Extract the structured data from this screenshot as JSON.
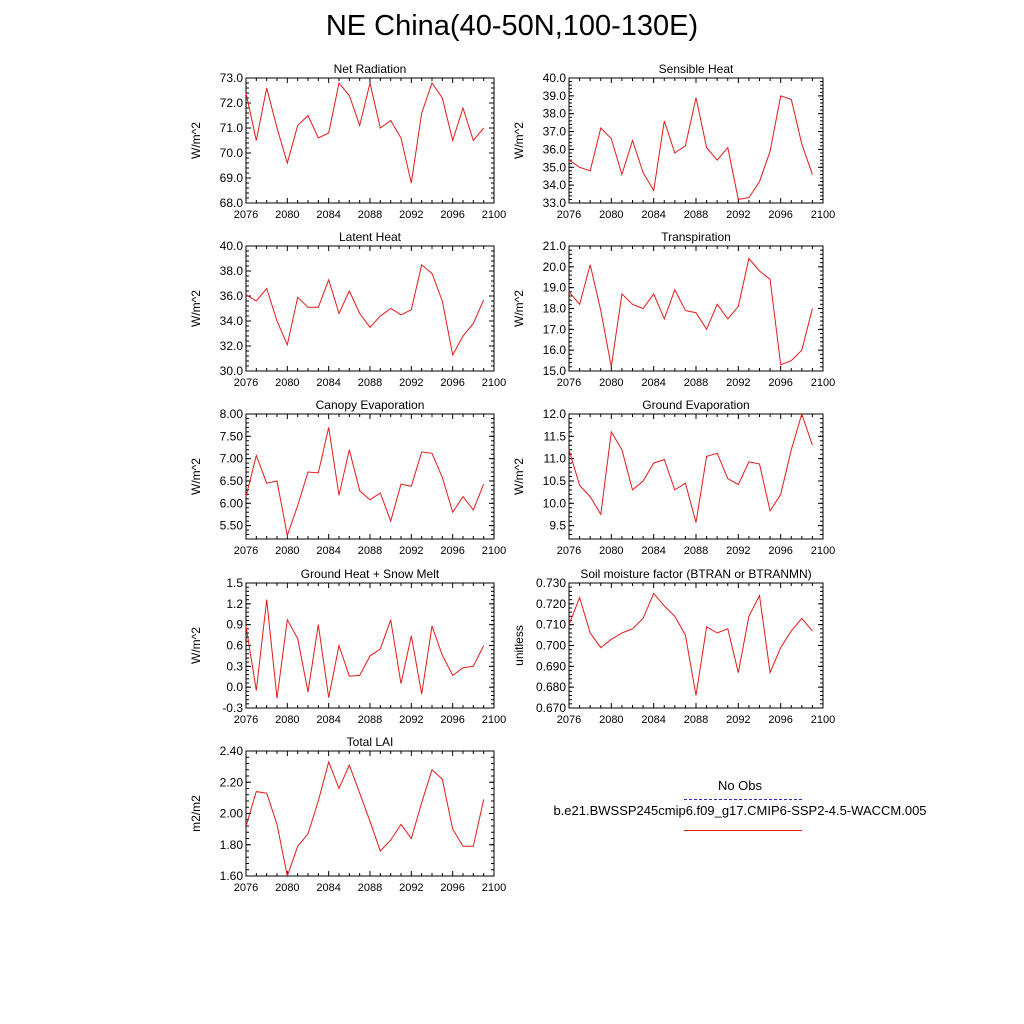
{
  "title": "NE China(40-50N,100-130E)",
  "legend": {
    "obs_label": "No Obs",
    "model_label": "b.e21.BWSSP245cmip6.f09_g17.CMIP6-SSP2-4.5-WACCM.005",
    "obs_color": "#2b2bb0",
    "model_color": "#e41a1c"
  },
  "x_ticks": [
    "2076",
    "2080",
    "2084",
    "2088",
    "2092",
    "2096",
    "2100"
  ],
  "chart_data": [
    {
      "type": "line",
      "title": "Net Radiation",
      "ylabel": "W/m^2",
      "xlim": [
        2076,
        2100
      ],
      "ylim": [
        68.0,
        73.0
      ],
      "yticks": [
        "68.0",
        "69.0",
        "70.0",
        "71.0",
        "72.0",
        "73.0"
      ],
      "x": [
        2076,
        2077,
        2078,
        2079,
        2080,
        2081,
        2082,
        2083,
        2084,
        2085,
        2086,
        2087,
        2088,
        2089,
        2090,
        2091,
        2092,
        2093,
        2094,
        2095,
        2096,
        2097,
        2098,
        2099
      ],
      "series": [
        {
          "values": [
            72.4,
            70.5,
            72.6,
            71.0,
            69.6,
            71.1,
            71.5,
            70.6,
            70.8,
            72.8,
            72.3,
            71.1,
            72.8,
            71.0,
            71.3,
            70.6,
            68.8,
            71.6,
            72.8,
            72.2,
            70.5,
            71.8,
            70.5,
            71.0
          ]
        }
      ]
    },
    {
      "type": "line",
      "title": "Sensible Heat",
      "ylabel": "W/m^2",
      "xlim": [
        2076,
        2100
      ],
      "ylim": [
        33.0,
        40.0
      ],
      "yticks": [
        "33.0",
        "34.0",
        "35.0",
        "36.0",
        "37.0",
        "38.0",
        "39.0",
        "40.0"
      ],
      "x": [
        2076,
        2077,
        2078,
        2079,
        2080,
        2081,
        2082,
        2083,
        2084,
        2085,
        2086,
        2087,
        2088,
        2089,
        2090,
        2091,
        2092,
        2093,
        2094,
        2095,
        2096,
        2097,
        2098,
        2099
      ],
      "series": [
        {
          "values": [
            35.4,
            35.0,
            34.8,
            37.2,
            36.6,
            34.6,
            36.5,
            34.7,
            33.7,
            37.6,
            35.8,
            36.2,
            38.9,
            36.1,
            35.4,
            36.1,
            33.2,
            33.3,
            34.2,
            35.9,
            39.0,
            38.8,
            36.3,
            34.6
          ]
        }
      ]
    },
    {
      "type": "line",
      "title": "Latent Heat",
      "ylabel": "W/m^2",
      "xlim": [
        2076,
        2100
      ],
      "ylim": [
        30.0,
        40.0
      ],
      "yticks": [
        "30.0",
        "32.0",
        "34.0",
        "36.0",
        "38.0",
        "40.0"
      ],
      "x": [
        2076,
        2077,
        2078,
        2079,
        2080,
        2081,
        2082,
        2083,
        2084,
        2085,
        2086,
        2087,
        2088,
        2089,
        2090,
        2091,
        2092,
        2093,
        2094,
        2095,
        2096,
        2097,
        2098,
        2099
      ],
      "series": [
        {
          "values": [
            36.1,
            35.6,
            36.6,
            34.0,
            32.1,
            35.9,
            35.1,
            35.1,
            37.3,
            34.6,
            36.4,
            34.6,
            33.5,
            34.4,
            35.0,
            34.5,
            34.9,
            38.5,
            37.8,
            35.6,
            31.3,
            32.8,
            33.8,
            35.7
          ]
        }
      ]
    },
    {
      "type": "line",
      "title": "Transpiration",
      "ylabel": "W/m^2",
      "xlim": [
        2076,
        2100
      ],
      "ylim": [
        15.0,
        21.0
      ],
      "yticks": [
        "15.0",
        "16.0",
        "17.0",
        "18.0",
        "19.0",
        "20.0",
        "21.0"
      ],
      "x": [
        2076,
        2077,
        2078,
        2079,
        2080,
        2081,
        2082,
        2083,
        2084,
        2085,
        2086,
        2087,
        2088,
        2089,
        2090,
        2091,
        2092,
        2093,
        2094,
        2095,
        2096,
        2097,
        2098,
        2099
      ],
      "series": [
        {
          "values": [
            18.8,
            18.2,
            20.1,
            17.9,
            15.2,
            18.7,
            18.2,
            18.0,
            18.7,
            17.5,
            18.9,
            17.9,
            17.8,
            17.0,
            18.2,
            17.5,
            18.1,
            20.4,
            19.8,
            19.4,
            15.3,
            15.5,
            16.0,
            18.0
          ]
        }
      ]
    },
    {
      "type": "line",
      "title": "Canopy Evaporation",
      "ylabel": "W/m^2",
      "xlim": [
        2076,
        2100
      ],
      "ylim": [
        5.2,
        8.0
      ],
      "yticks": [
        "5.50",
        "6.00",
        "6.50",
        "7.00",
        "7.50",
        "8.00"
      ],
      "x": [
        2076,
        2077,
        2078,
        2079,
        2080,
        2081,
        2082,
        2083,
        2084,
        2085,
        2086,
        2087,
        2088,
        2089,
        2090,
        2091,
        2092,
        2093,
        2094,
        2095,
        2096,
        2097,
        2098,
        2099
      ],
      "series": [
        {
          "values": [
            6.15,
            7.07,
            6.45,
            6.5,
            5.28,
            5.95,
            6.7,
            6.68,
            7.7,
            6.18,
            7.2,
            6.28,
            6.08,
            6.23,
            5.6,
            6.43,
            6.38,
            7.15,
            7.12,
            6.58,
            5.8,
            6.15,
            5.85,
            6.43
          ]
        }
      ]
    },
    {
      "type": "line",
      "title": "Ground Evaporation",
      "ylabel": "W/m^2",
      "xlim": [
        2076,
        2100
      ],
      "ylim": [
        9.2,
        12.0
      ],
      "yticks": [
        "9.5",
        "10.0",
        "10.5",
        "11.0",
        "11.5",
        "12.0"
      ],
      "x": [
        2076,
        2077,
        2078,
        2079,
        2080,
        2081,
        2082,
        2083,
        2084,
        2085,
        2086,
        2087,
        2088,
        2089,
        2090,
        2091,
        2092,
        2093,
        2094,
        2095,
        2096,
        2097,
        2098,
        2099
      ],
      "series": [
        {
          "values": [
            11.2,
            10.4,
            10.15,
            9.75,
            11.6,
            11.2,
            10.3,
            10.5,
            10.9,
            10.98,
            10.3,
            10.45,
            9.57,
            11.05,
            11.12,
            10.55,
            10.42,
            10.93,
            10.88,
            9.83,
            10.2,
            11.2,
            12.0,
            11.3
          ]
        }
      ]
    },
    {
      "type": "line",
      "title": "Ground Heat + Snow Melt",
      "ylabel": "W/m^2",
      "xlim": [
        2076,
        2100
      ],
      "ylim": [
        -0.3,
        1.5
      ],
      "yticks": [
        "-0.3",
        "0.0",
        "0.3",
        "0.6",
        "0.9",
        "1.2",
        "1.5"
      ],
      "x": [
        2076,
        2077,
        2078,
        2079,
        2080,
        2081,
        2082,
        2083,
        2084,
        2085,
        2086,
        2087,
        2088,
        2089,
        2090,
        2091,
        2092,
        2093,
        2094,
        2095,
        2096,
        2097,
        2098,
        2099
      ],
      "series": [
        {
          "values": [
            0.88,
            -0.05,
            1.26,
            -0.16,
            0.97,
            0.7,
            -0.07,
            0.9,
            -0.15,
            0.6,
            0.16,
            0.17,
            0.45,
            0.55,
            0.97,
            0.05,
            0.74,
            -0.1,
            0.88,
            0.46,
            0.17,
            0.28,
            0.3,
            0.6
          ]
        }
      ]
    },
    {
      "type": "line",
      "title": "Soil moisture factor (BTRAN or BTRANMN)",
      "ylabel": "unitless",
      "xlim": [
        2076,
        2100
      ],
      "ylim": [
        0.67,
        0.73
      ],
      "yticks": [
        "0.670",
        "0.680",
        "0.690",
        "0.700",
        "0.710",
        "0.720",
        "0.730"
      ],
      "x": [
        2076,
        2077,
        2078,
        2079,
        2080,
        2081,
        2082,
        2083,
        2084,
        2085,
        2086,
        2087,
        2088,
        2089,
        2090,
        2091,
        2092,
        2093,
        2094,
        2095,
        2096,
        2097,
        2098,
        2099
      ],
      "series": [
        {
          "values": [
            0.71,
            0.723,
            0.706,
            0.699,
            0.703,
            0.706,
            0.708,
            0.713,
            0.725,
            0.719,
            0.714,
            0.705,
            0.676,
            0.709,
            0.706,
            0.708,
            0.687,
            0.714,
            0.724,
            0.687,
            0.699,
            0.707,
            0.713,
            0.707
          ]
        }
      ]
    },
    {
      "type": "line",
      "title": "Total LAI",
      "ylabel": "m2/m2",
      "xlim": [
        2076,
        2100
      ],
      "ylim": [
        1.6,
        2.4
      ],
      "yticks": [
        "1.60",
        "1.80",
        "2.00",
        "2.20",
        "2.40"
      ],
      "x": [
        2076,
        2077,
        2078,
        2079,
        2080,
        2081,
        2082,
        2083,
        2084,
        2085,
        2086,
        2087,
        2088,
        2089,
        2090,
        2091,
        2092,
        2093,
        2094,
        2095,
        2096,
        2097,
        2098,
        2099
      ],
      "series": [
        {
          "values": [
            1.92,
            2.14,
            2.13,
            1.93,
            1.6,
            1.79,
            1.87,
            2.08,
            2.33,
            2.16,
            2.31,
            2.13,
            1.95,
            1.76,
            1.83,
            1.93,
            1.84,
            2.07,
            2.28,
            2.22,
            1.9,
            1.79,
            1.79,
            2.09
          ]
        }
      ]
    }
  ]
}
